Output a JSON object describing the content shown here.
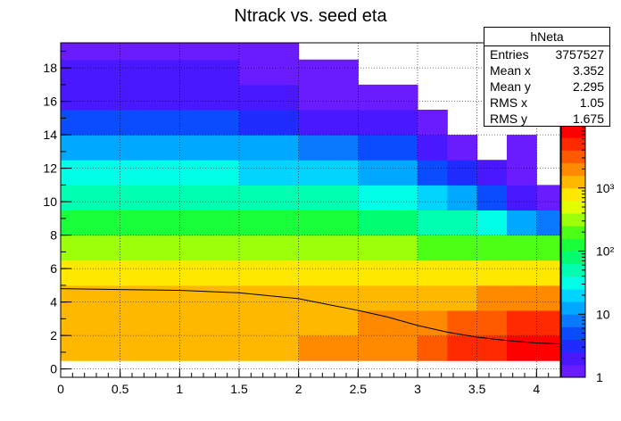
{
  "chart_data": {
    "type": "heatmap",
    "title": "Ntrack vs. seed eta",
    "x_range": [
      0,
      4.2
    ],
    "y_range": [
      -0.5,
      19.5
    ],
    "x_ticks": [
      "0",
      "0.5",
      "1",
      "1.5",
      "2",
      "2.5",
      "3",
      "3.5",
      "4"
    ],
    "y_ticks": [
      "0",
      "2",
      "4",
      "6",
      "8",
      "10",
      "12",
      "14",
      "16",
      "18"
    ],
    "z_scale": "log",
    "z_range": [
      1,
      10000
    ],
    "z_ticks": [
      "1",
      "10",
      "10²",
      "10³"
    ],
    "grid": true,
    "palette": [
      "#6a1bff",
      "#4a18ff",
      "#1f2bff",
      "#0b4cff",
      "#0a78ff",
      "#00a8ff",
      "#00d4ff",
      "#00ffe6",
      "#00ffb0",
      "#00ff70",
      "#19ff3a",
      "#4dff14",
      "#9dff0a",
      "#e2ff00",
      "#ffe800",
      "#ffb800",
      "#ff8a00",
      "#ff5a00",
      "#ff2a00",
      "#ff0000"
    ],
    "bins": {
      "x_edges": [
        0,
        0.5,
        1,
        1.5,
        2,
        2.5,
        3,
        3.25,
        3.5,
        3.75,
        4,
        4.2
      ],
      "rows": [
        {
          "y": [
            0.5,
            2
          ],
          "z": [
            1800,
            1800,
            1800,
            1800,
            1900,
            2500,
            3600,
            5000,
            6500,
            8500,
            9000
          ]
        },
        {
          "y": [
            2,
            3.5
          ],
          "z": [
            1400,
            1500,
            1500,
            1500,
            1600,
            2000,
            2800,
            3500,
            4500,
            5500,
            6000
          ]
        },
        {
          "y": [
            3.5,
            5
          ],
          "z": [
            1500,
            1300,
            1200,
            1200,
            1200,
            1300,
            1500,
            1800,
            2100,
            2400,
            2500
          ]
        },
        {
          "y": [
            5,
            6.5
          ],
          "z": [
            900,
            900,
            900,
            900,
            900,
            900,
            900,
            950,
            1000,
            1000,
            1000
          ]
        },
        {
          "y": [
            6.5,
            8
          ],
          "z": [
            400,
            400,
            400,
            380,
            350,
            300,
            260,
            230,
            200,
            180,
            170
          ]
        },
        {
          "y": [
            8,
            9.5
          ],
          "z": [
            150,
            150,
            150,
            140,
            120,
            90,
            60,
            40,
            25,
            12,
            6
          ]
        },
        {
          "y": [
            9.5,
            11
          ],
          "z": [
            60,
            60,
            60,
            55,
            45,
            30,
            18,
            10,
            5,
            2,
            1
          ]
        },
        {
          "y": [
            11,
            12.5
          ],
          "z": [
            25,
            25,
            25,
            22,
            18,
            10,
            5,
            3,
            2,
            1,
            0
          ]
        },
        {
          "y": [
            12.5,
            14
          ],
          "z": [
            10,
            10,
            10,
            9,
            7,
            4,
            2,
            1,
            0,
            1,
            0
          ]
        },
        {
          "y": [
            14,
            15.5
          ],
          "z": [
            4,
            4,
            4,
            3,
            2,
            2,
            1,
            0,
            0,
            0,
            0
          ]
        },
        {
          "y": [
            15.5,
            17
          ],
          "z": [
            2,
            2,
            2,
            2,
            1,
            1,
            0,
            0,
            0,
            0,
            0
          ]
        },
        {
          "y": [
            17,
            18.5
          ],
          "z": [
            1.5,
            1.5,
            1.5,
            1,
            1,
            0,
            0,
            0,
            0,
            0,
            0
          ]
        },
        {
          "y": [
            18.5,
            19.5
          ],
          "z": [
            1,
            1,
            1,
            1,
            0,
            0,
            0,
            0,
            0,
            0,
            0
          ]
        }
      ]
    },
    "profile": {
      "color": "#000000",
      "x": [
        0,
        0.5,
        1,
        1.5,
        2,
        2.5,
        2.75,
        3,
        3.25,
        3.5,
        3.75,
        4,
        4.2
      ],
      "y": [
        4.8,
        4.75,
        4.7,
        4.55,
        4.2,
        3.5,
        3.1,
        2.6,
        2.2,
        1.9,
        1.7,
        1.55,
        1.5
      ]
    }
  },
  "stats_box": {
    "title": "hNeta",
    "rows": [
      {
        "label": "Entries",
        "value": "3757527"
      },
      {
        "label": "Mean x",
        "value": "3.352"
      },
      {
        "label": "Mean y",
        "value": "2.295"
      },
      {
        "label": "RMS x",
        "value": "1.05"
      },
      {
        "label": "RMS y",
        "value": "1.675"
      }
    ]
  }
}
